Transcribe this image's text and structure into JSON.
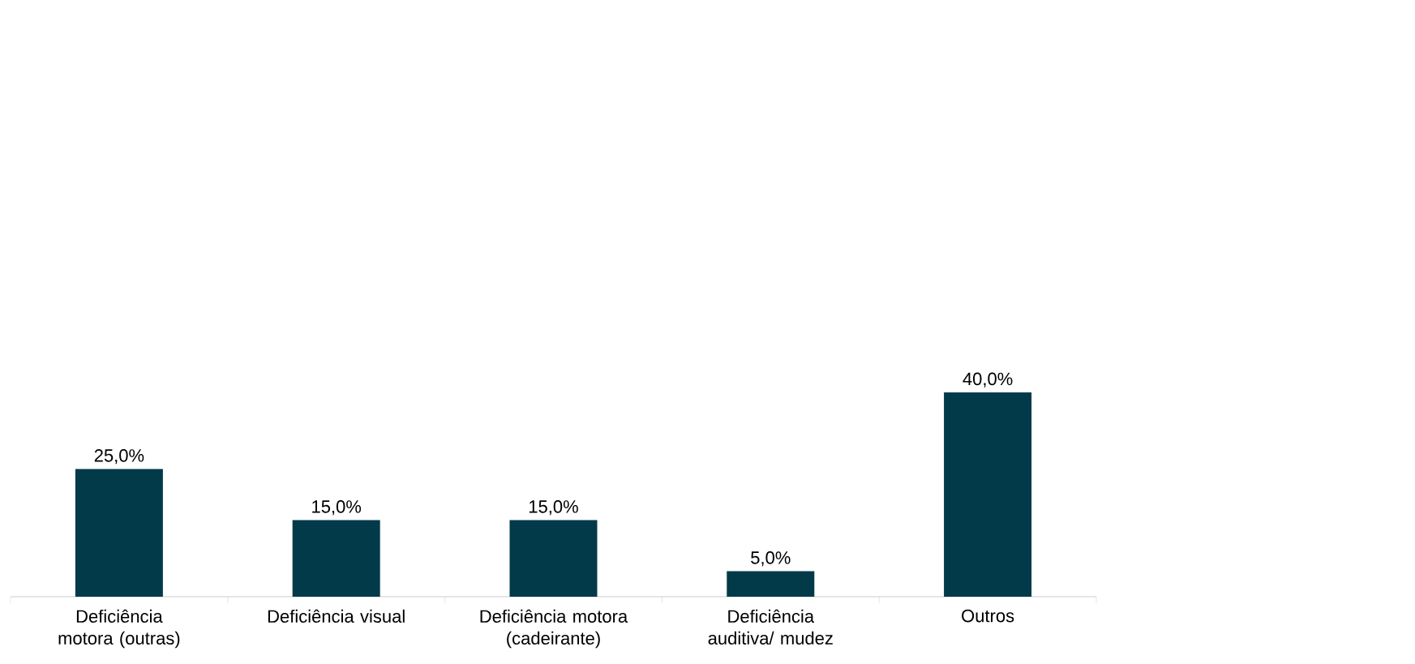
{
  "chart_data": {
    "type": "bar",
    "categories": [
      "Deficiência motora (outras)",
      "Deficiência visual",
      "Deficiência motora (cadeirante)",
      "Deficiência auditiva/ mudez",
      "Outros"
    ],
    "values": [
      25,
      15,
      15,
      5,
      40
    ],
    "value_labels": [
      "25,0%",
      "15,0%",
      "15,0%",
      "5,0%",
      "40,0%"
    ],
    "color": "#023a4a"
  }
}
